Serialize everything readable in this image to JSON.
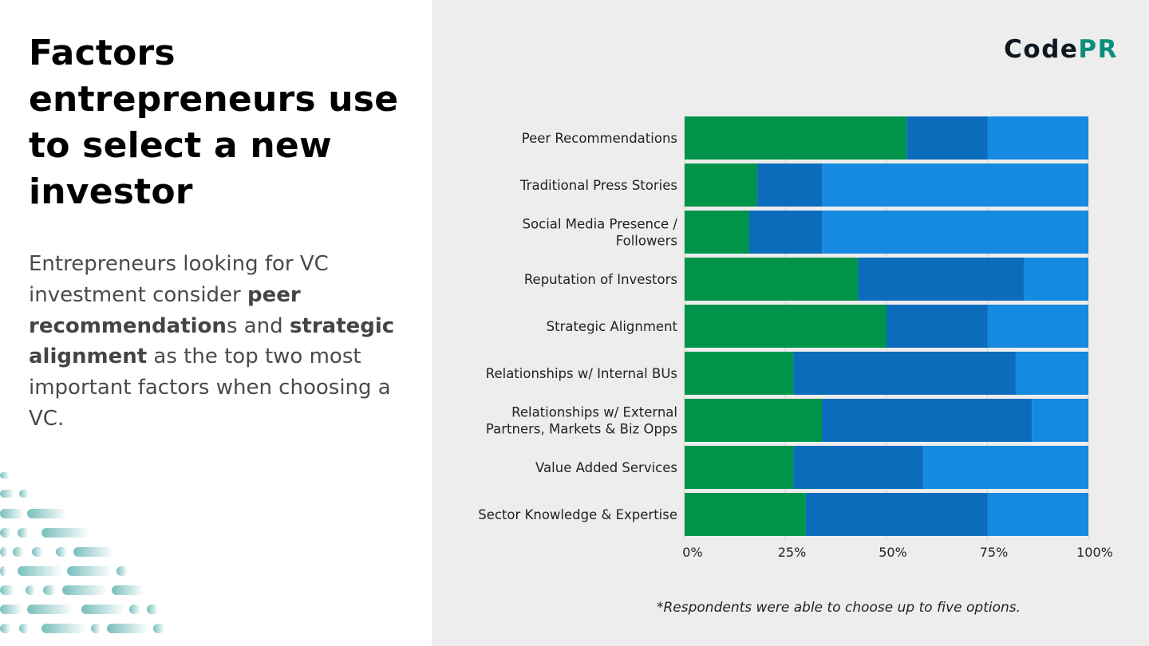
{
  "title": "Factors entrepreneurs use to select a new investor",
  "body": {
    "p1": "Entrepreneurs looking for VC investment consider ",
    "b1": "peer recommendation",
    "p2": "s and ",
    "b2": "strategic alignment",
    "p3": " as the top two most important factors when choosing a VC."
  },
  "logo": {
    "part1": "Code",
    "part2": "PR"
  },
  "footnote": "*Respondents were able to choose up to five options.",
  "colors": {
    "green": "#00944a",
    "dark_blue": "#0a6cbb",
    "light_blue": "#168ae0"
  },
  "chart_data": {
    "type": "bar",
    "orientation": "horizontal",
    "stacked": true,
    "categories": [
      [
        "Peer Recommendations"
      ],
      [
        "Traditional Press Stories"
      ],
      [
        "Social Media Presence /",
        "Followers"
      ],
      [
        "Reputation of Investors"
      ],
      [
        "Strategic Alignment"
      ],
      [
        "Relationships w/ Internal BUs"
      ],
      [
        "Relationships w/ External",
        "Partners, Markets & Biz Opps"
      ],
      [
        "Value Added Services"
      ],
      [
        "Sector Knowledge & Expertise"
      ]
    ],
    "series": [
      {
        "values": [
          55,
          18,
          16,
          43,
          50,
          27,
          34,
          27,
          30
        ]
      },
      {
        "values": [
          20,
          16,
          18,
          41,
          25,
          55,
          52,
          32,
          45
        ]
      },
      {
        "values": [
          25,
          66,
          66,
          16,
          25,
          18,
          14,
          41,
          25
        ]
      }
    ],
    "xlim": [
      0,
      100
    ],
    "xticks": [
      "0%",
      "25%",
      "50%",
      "75%",
      "100%"
    ],
    "grid": true
  }
}
